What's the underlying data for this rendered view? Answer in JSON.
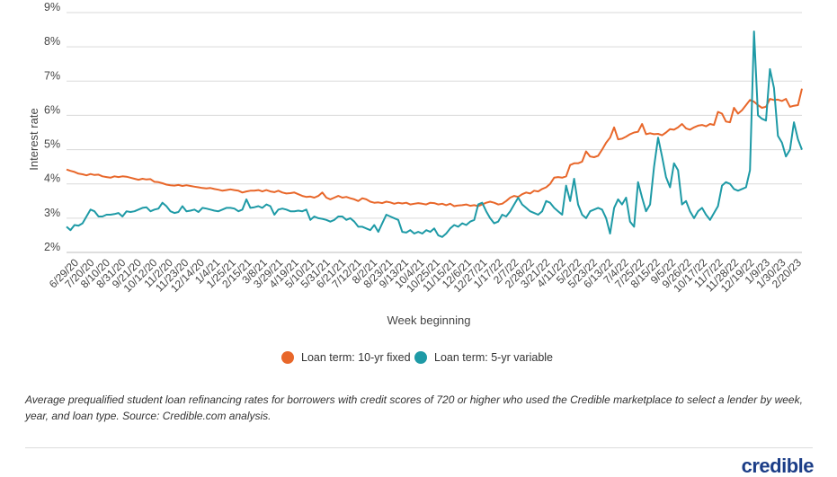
{
  "chart_data": {
    "type": "line",
    "ylabel": "Interest rate",
    "xlabel": "Week beginning",
    "ylim": [
      2,
      9
    ],
    "ytick_values": [
      2,
      3,
      4,
      5,
      6,
      7,
      8,
      9
    ],
    "ytick_labels": [
      "2%",
      "3%",
      "4%",
      "5%",
      "6%",
      "7%",
      "8%",
      "9%"
    ],
    "grid": "horizontal",
    "legend_position": "bottom",
    "x_labels": [
      "6/29/20",
      "7/20/20",
      "8/10/20",
      "8/31/20",
      "9/21/20",
      "10/12/20",
      "11/2/20",
      "11/23/20",
      "12/14/20",
      "1/4/21",
      "1/25/21",
      "2/15/21",
      "3/8/21",
      "3/29/21",
      "4/19/21",
      "5/10/21",
      "5/31/21",
      "6/21/21",
      "7/12/21",
      "8/2/21",
      "8/23/21",
      "9/13/21",
      "10/4/21",
      "10/25/21",
      "11/15/21",
      "12/6/21",
      "12/27/21",
      "1/17/22",
      "2/7/22",
      "2/28/22",
      "3/21/22",
      "4/11/22",
      "5/2/22",
      "5/23/22",
      "6/13/22",
      "7/4/22",
      "7/25/22",
      "8/15/22",
      "9/5/22",
      "9/26/22",
      "10/17/22",
      "11/7/22",
      "11/28/22",
      "12/19/22",
      "1/9/23",
      "1/30/23",
      "2/20/23"
    ],
    "series": [
      {
        "name": "Loan term: 10-yr fixed",
        "color": "#e8672a",
        "values": [
          4.42,
          4.38,
          4.35,
          4.3,
          4.28,
          4.25,
          4.29,
          4.26,
          4.27,
          4.22,
          4.2,
          4.18,
          4.22,
          4.2,
          4.22,
          4.21,
          4.18,
          4.15,
          4.12,
          4.15,
          4.13,
          4.14,
          4.06,
          4.05,
          4.02,
          3.98,
          3.96,
          3.95,
          3.97,
          3.94,
          3.96,
          3.94,
          3.92,
          3.9,
          3.88,
          3.87,
          3.88,
          3.85,
          3.83,
          3.8,
          3.82,
          3.84,
          3.82,
          3.8,
          3.75,
          3.78,
          3.8,
          3.8,
          3.82,
          3.78,
          3.82,
          3.78,
          3.76,
          3.8,
          3.75,
          3.72,
          3.73,
          3.75,
          3.7,
          3.65,
          3.62,
          3.63,
          3.6,
          3.65,
          3.75,
          3.6,
          3.55,
          3.6,
          3.65,
          3.6,
          3.62,
          3.58,
          3.55,
          3.5,
          3.58,
          3.55,
          3.48,
          3.45,
          3.46,
          3.44,
          3.48,
          3.46,
          3.42,
          3.45,
          3.43,
          3.45,
          3.4,
          3.42,
          3.44,
          3.42,
          3.4,
          3.45,
          3.44,
          3.4,
          3.42,
          3.38,
          3.42,
          3.35,
          3.37,
          3.38,
          3.4,
          3.36,
          3.38,
          3.35,
          3.4,
          3.45,
          3.48,
          3.45,
          3.4,
          3.42,
          3.5,
          3.6,
          3.65,
          3.62,
          3.7,
          3.75,
          3.72,
          3.8,
          3.78,
          3.85,
          3.9,
          4.0,
          4.18,
          4.2,
          4.18,
          4.22,
          4.55,
          4.6,
          4.6,
          4.65,
          4.95,
          4.8,
          4.78,
          4.82,
          5.0,
          5.2,
          5.35,
          5.65,
          5.3,
          5.32,
          5.38,
          5.45,
          5.5,
          5.52,
          5.75,
          5.45,
          5.48,
          5.45,
          5.46,
          5.42,
          5.5,
          5.6,
          5.58,
          5.65,
          5.75,
          5.62,
          5.58,
          5.65,
          5.7,
          5.72,
          5.68,
          5.75,
          5.72,
          6.1,
          6.05,
          5.82,
          5.8,
          6.22,
          6.05,
          6.15,
          6.3,
          6.45,
          6.4,
          6.3,
          6.22,
          6.25,
          6.48,
          6.45,
          6.46,
          6.42,
          6.48,
          6.25,
          6.28,
          6.3,
          6.78
        ]
      },
      {
        "name": "Loan term: 5-yr variable",
        "color": "#1e9aa6",
        "values": [
          2.75,
          2.65,
          2.8,
          2.78,
          2.85,
          3.05,
          3.25,
          3.2,
          3.05,
          3.05,
          3.1,
          3.1,
          3.12,
          3.15,
          3.05,
          3.2,
          3.18,
          3.2,
          3.25,
          3.3,
          3.32,
          3.2,
          3.25,
          3.28,
          3.45,
          3.35,
          3.2,
          3.15,
          3.18,
          3.35,
          3.2,
          3.22,
          3.25,
          3.18,
          3.3,
          3.28,
          3.25,
          3.22,
          3.2,
          3.25,
          3.3,
          3.3,
          3.28,
          3.2,
          3.25,
          3.55,
          3.3,
          3.32,
          3.35,
          3.3,
          3.4,
          3.35,
          3.1,
          3.25,
          3.28,
          3.25,
          3.2,
          3.2,
          3.22,
          3.2,
          3.25,
          2.95,
          3.05,
          3.0,
          2.98,
          2.95,
          2.9,
          2.95,
          3.05,
          3.05,
          2.95,
          3.0,
          2.9,
          2.75,
          2.75,
          2.7,
          2.65,
          2.8,
          2.6,
          2.85,
          3.1,
          3.05,
          3.0,
          2.95,
          2.6,
          2.58,
          2.65,
          2.55,
          2.6,
          2.55,
          2.65,
          2.6,
          2.7,
          2.5,
          2.45,
          2.55,
          2.7,
          2.8,
          2.75,
          2.85,
          2.8,
          2.9,
          2.95,
          3.4,
          3.45,
          3.2,
          3.0,
          2.85,
          2.9,
          3.1,
          3.05,
          3.2,
          3.4,
          3.6,
          3.4,
          3.3,
          3.2,
          3.15,
          3.1,
          3.2,
          3.5,
          3.45,
          3.3,
          3.2,
          3.1,
          3.95,
          3.5,
          4.15,
          3.4,
          3.1,
          3.0,
          3.2,
          3.25,
          3.3,
          3.25,
          3.0,
          2.55,
          3.3,
          3.55,
          3.4,
          3.6,
          2.9,
          2.75,
          4.05,
          3.6,
          3.2,
          3.4,
          4.5,
          5.35,
          4.8,
          4.2,
          3.9,
          4.6,
          4.4,
          3.4,
          3.5,
          3.2,
          3.0,
          3.2,
          3.3,
          3.1,
          2.95,
          3.15,
          3.35,
          3.95,
          4.05,
          4.0,
          3.85,
          3.8,
          3.85,
          3.9,
          4.4,
          8.45,
          6.0,
          5.9,
          5.85,
          7.35,
          6.8,
          5.4,
          5.2,
          4.8,
          5.0,
          5.8,
          5.3,
          5.0
        ]
      }
    ]
  },
  "legend": {
    "items": [
      "Loan term: 10-yr fixed",
      "Loan term: 5-yr variable"
    ]
  },
  "caption": "Average prequalified student loan refinancing rates for borrowers with credit scores of 720 or higher who used the Credible marketplace to select a lender by week, year, and loan type. Source: Credible.com analysis.",
  "logo": "credible",
  "colors": {
    "fixed": "#e8672a",
    "variable": "#1e9aa6",
    "grid": "#d9d9d9",
    "brand": "#1b3d87"
  }
}
